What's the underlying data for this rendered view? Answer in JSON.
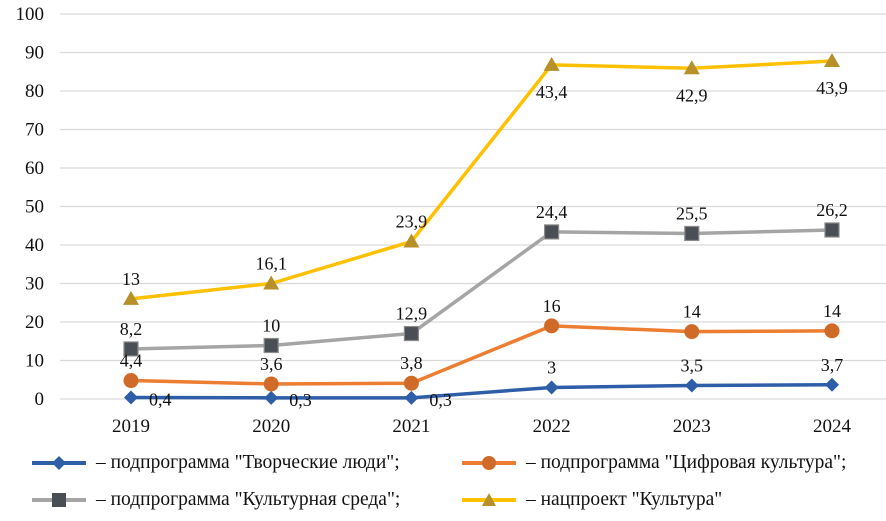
{
  "chart_data": {
    "type": "line",
    "stacked": true,
    "title": "",
    "xlabel": "",
    "ylabel": "",
    "categories": [
      "2019",
      "2020",
      "2021",
      "2022",
      "2023",
      "2024"
    ],
    "ylim": [
      0,
      100
    ],
    "yticks": [
      "0",
      "10",
      "20",
      "30",
      "40",
      "50",
      "60",
      "70",
      "80",
      "90",
      "100"
    ],
    "grid": true,
    "legend_position": "bottom",
    "series": [
      {
        "name": "подпрограмма \"Творческие люди\";",
        "color": "#2E5EA8",
        "marker": "diamond",
        "values": [
          0.4,
          0.3,
          0.3,
          3,
          3.5,
          3.7
        ],
        "labels": [
          "0,4",
          "0,3",
          "0,3",
          "3",
          "3,5",
          "3,7"
        ],
        "label_pos": [
          "right",
          "right",
          "right",
          "above",
          "above",
          "above"
        ]
      },
      {
        "name": "подпрограмма \"Цифровая культура\";",
        "color": "#ED7D31",
        "marker_color": "#D06A28",
        "marker": "circle",
        "values": [
          4.4,
          3.6,
          3.8,
          16,
          14,
          14
        ],
        "labels": [
          "4,4",
          "3,6",
          "3,8",
          "16",
          "14",
          "14"
        ],
        "label_pos": [
          "above",
          "above",
          "above",
          "above",
          "above",
          "above"
        ]
      },
      {
        "name": "подпрограмма \"Культурная среда\";",
        "color": "#A5A5A5",
        "marker_color": "#4A4F55",
        "marker": "square",
        "values": [
          8.2,
          10,
          12.9,
          24.4,
          25.5,
          26.2
        ],
        "labels": [
          "8,2",
          "10",
          "12,9",
          "24,4",
          "25,5",
          "26,2"
        ],
        "label_pos": [
          "above",
          "above",
          "above",
          "above",
          "above",
          "above"
        ]
      },
      {
        "name": "нацпроект \"Культура\"",
        "color": "#FFC000",
        "marker_color": "#B8902A",
        "marker": "triangle",
        "values": [
          13,
          16.1,
          23.9,
          43.4,
          42.9,
          43.9
        ],
        "labels": [
          "13",
          "16,1",
          "23,9",
          "43,4",
          "42,9",
          "43,9"
        ],
        "label_pos": [
          "above",
          "above",
          "above",
          "below",
          "below",
          "below"
        ]
      }
    ]
  },
  "legend": {
    "dash": "–",
    "items": [
      {
        "label": "подпрограмма \"Творческие люди\";"
      },
      {
        "label": "подпрограмма \"Цифровая культура\";"
      },
      {
        "label": "подпрограмма \"Культурная среда\";"
      },
      {
        "label": "нацпроект \"Культура\""
      }
    ]
  }
}
